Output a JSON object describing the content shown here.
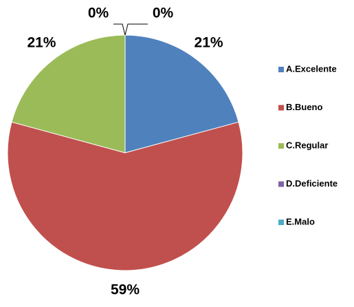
{
  "chart_data": {
    "type": "pie",
    "categories": [
      "A.Excelente",
      "B.Bueno",
      "C.Regular",
      "D.Deficiente",
      "E.Malo"
    ],
    "values": [
      21,
      59,
      21,
      0,
      0
    ],
    "value_labels": [
      "21%",
      "59%",
      "21%",
      "0%",
      "0%"
    ],
    "colors": [
      "#4f81bd",
      "#c0504d",
      "#9bbb59",
      "#8064a2",
      "#4bacc6"
    ],
    "legend": "right"
  }
}
